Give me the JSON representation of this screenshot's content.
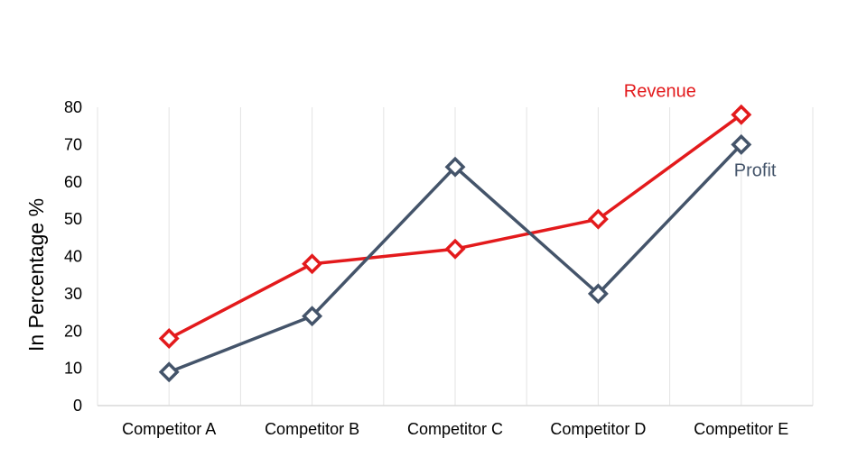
{
  "chart_data": {
    "type": "line",
    "categories": [
      "Competitor A",
      "Competitor B",
      "Competitor C",
      "Competitor D",
      "Competitor E"
    ],
    "series": [
      {
        "name": "Revenue",
        "values": [
          18,
          38,
          42,
          50,
          78
        ],
        "color": "#e31a1c"
      },
      {
        "name": "Profit",
        "values": [
          9,
          24,
          64,
          30,
          70
        ],
        "color": "#44546a"
      }
    ],
    "ylabel": "In Percentage %",
    "ylim": [
      0,
      80
    ],
    "yticks": [
      "0",
      "10",
      "20",
      "30",
      "40",
      "50",
      "60",
      "70",
      "80"
    ],
    "grid": "vertical",
    "marker": "diamond-open"
  }
}
